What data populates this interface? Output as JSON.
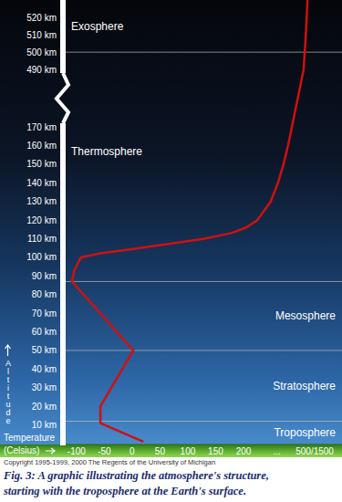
{
  "chart_data": {
    "type": "line",
    "color": "#d01010",
    "x_label": "Temperature (Celsius)",
    "y_label": "Altitude",
    "copyright": "Copyright 1995-1999, 2000 The Regents of the University of Michigan",
    "caption": [
      "Fig. 3:  A graphic illustrating the atmosphere's structure,",
      "starting with the troposphere at the Earth's surface."
    ],
    "x": [
      20,
      -57,
      -57,
      2,
      -108,
      -104,
      -92,
      -60,
      -10,
      60,
      130,
      178,
      205,
      225,
      249,
      262,
      272,
      280,
      287,
      308,
      310,
      312,
      315
    ],
    "values": [
      1,
      11,
      20,
      50,
      87,
      93,
      100,
      102,
      104,
      107,
      110,
      113,
      116,
      120,
      130,
      140,
      150,
      160,
      170,
      490,
      500,
      510,
      530
    ],
    "xlim": [
      -126,
      377
    ],
    "xticks": [
      -100,
      -50,
      0,
      50,
      100,
      150,
      200,
      {
        "value": 260,
        "label": "..."
      },
      {
        "value": 328,
        "label": "500/1500"
      }
    ],
    "ylim": [
      0,
      530
    ],
    "ybreak": [
      172,
      488
    ],
    "yticks": [
      {
        "value": 10,
        "label": "10 km"
      },
      {
        "value": 20,
        "label": "20 km"
      },
      {
        "value": 30,
        "label": "30 km"
      },
      {
        "value": 40,
        "label": "40 km"
      },
      {
        "value": 50,
        "label": "50 km"
      },
      {
        "value": 60,
        "label": "60 km"
      },
      {
        "value": 70,
        "label": "70 km"
      },
      {
        "value": 80,
        "label": "80 km"
      },
      {
        "value": 90,
        "label": "90 km"
      },
      {
        "value": 100,
        "label": "100 km"
      },
      {
        "value": 110,
        "label": "110 km"
      },
      {
        "value": 120,
        "label": "120 km"
      },
      {
        "value": 130,
        "label": "130 km"
      },
      {
        "value": 140,
        "label": "140 km"
      },
      {
        "value": 150,
        "label": "150 km"
      },
      {
        "value": 160,
        "label": "160 km"
      },
      {
        "value": 170,
        "label": "170 km"
      },
      {
        "value": 490,
        "label": "490 km"
      },
      {
        "value": 500,
        "label": "500 km"
      },
      {
        "value": 510,
        "label": "510 km"
      },
      {
        "value": 520,
        "label": "520 km"
      }
    ],
    "grid": false,
    "layers": [
      {
        "name": "Troposphere",
        "top": 12
      },
      {
        "name": "Stratosphere",
        "top": 50
      },
      {
        "name": "Mesosphere",
        "top": 87
      },
      {
        "name": "Thermosphere",
        "top": 500
      },
      {
        "name": "Exosphere"
      }
    ]
  }
}
